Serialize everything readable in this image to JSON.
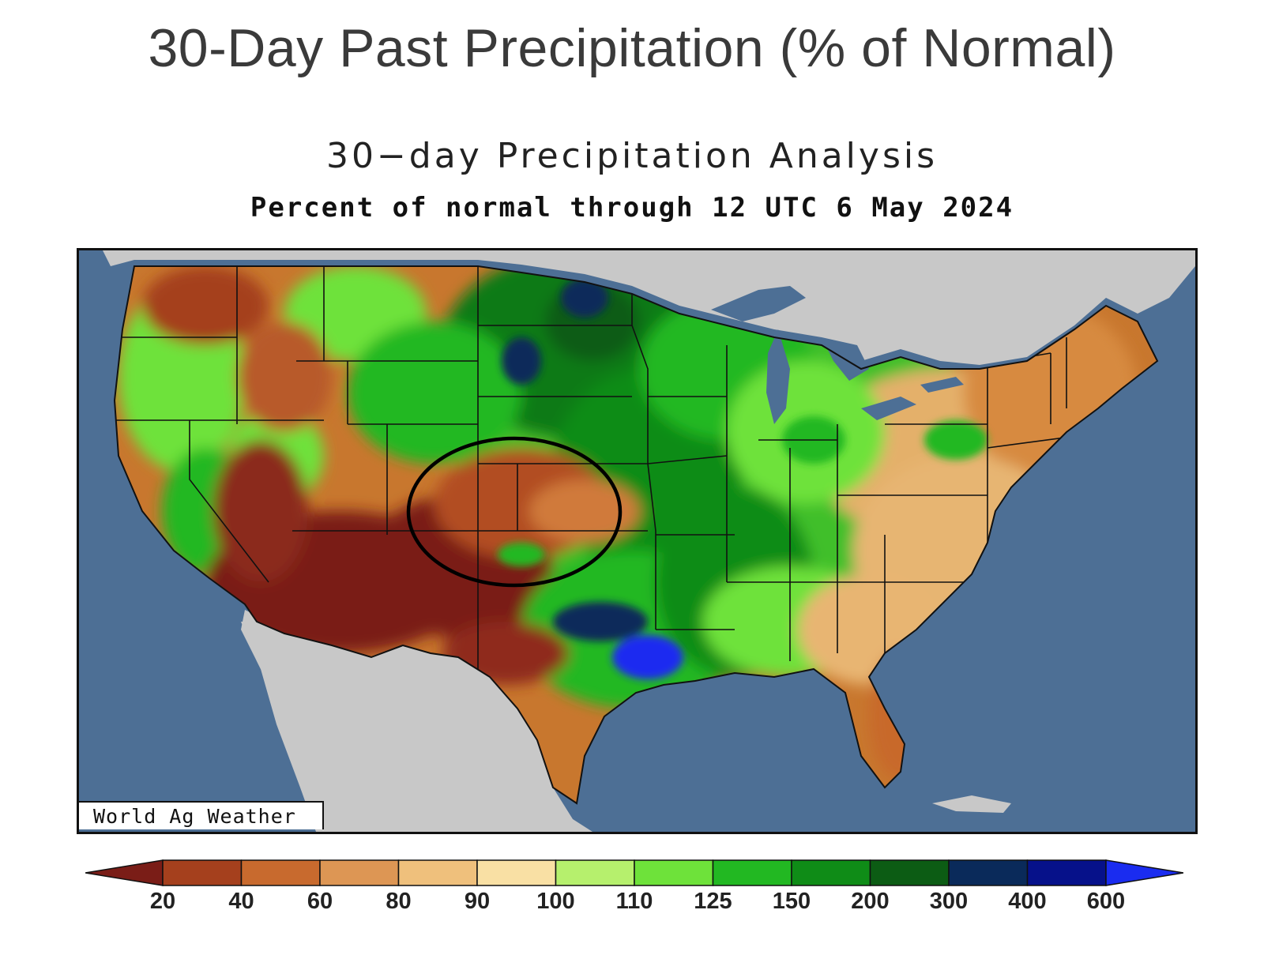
{
  "page_title": "30-Day Past Precipitation (% of Normal)",
  "map": {
    "title": "30−day Precipitation Analysis",
    "subtitle": "Percent of normal through 12 UTC 6 May 2024",
    "credit": "World Ag Weather",
    "colors": {
      "ocean": "#4d6f95",
      "land_outside": "#c8c8c8",
      "border": "#111111",
      "highlight_ellipse": "#000000"
    }
  },
  "legend": {
    "ticks": [
      "20",
      "40",
      "60",
      "80",
      "90",
      "100",
      "110",
      "125",
      "150",
      "200",
      "300",
      "400",
      "600"
    ],
    "colors": [
      "#7a1d17",
      "#a5401d",
      "#c86a2e",
      "#dd9654",
      "#efc07c",
      "#f9e0a4",
      "#b6f06d",
      "#6ee23a",
      "#22b822",
      "#0f8c17",
      "#0c5c14",
      "#0a2a5a",
      "#06118a",
      "#1a2cf0"
    ]
  }
}
